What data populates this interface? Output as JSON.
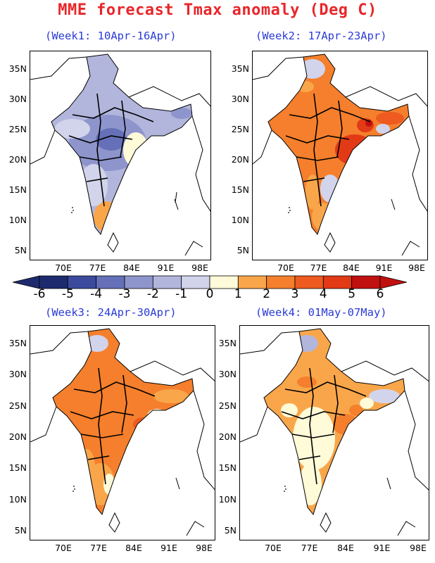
{
  "title": "MME forecast Tmax anomaly (Deg C)",
  "panels": [
    {
      "subtitle": "(Week1: 10Apr-16Apr)"
    },
    {
      "subtitle": "(Week2: 17Apr-23Apr)"
    },
    {
      "subtitle": "(Week3: 24Apr-30Apr)"
    },
    {
      "subtitle": "(Week4: 01May-07May)"
    }
  ],
  "lat_labels": [
    "35N",
    "30N",
    "25N",
    "20N",
    "15N",
    "10N",
    "5N"
  ],
  "lon_labels": [
    "70E",
    "77E",
    "84E",
    "91E",
    "98E"
  ],
  "colorbar": {
    "labels": [
      "-6",
      "-5",
      "-4",
      "-3",
      "-2",
      "-1",
      "0",
      "1",
      "2",
      "3",
      "4",
      "5",
      "6"
    ],
    "colors": [
      "#1e2a6e",
      "#3c4a9e",
      "#6570b8",
      "#8e95cc",
      "#b2b6dc",
      "#d2d4ec",
      "#fffad8",
      "#f9a64a",
      "#f57f2c",
      "#ee5a1f",
      "#e23a16",
      "#c01010"
    ]
  }
}
